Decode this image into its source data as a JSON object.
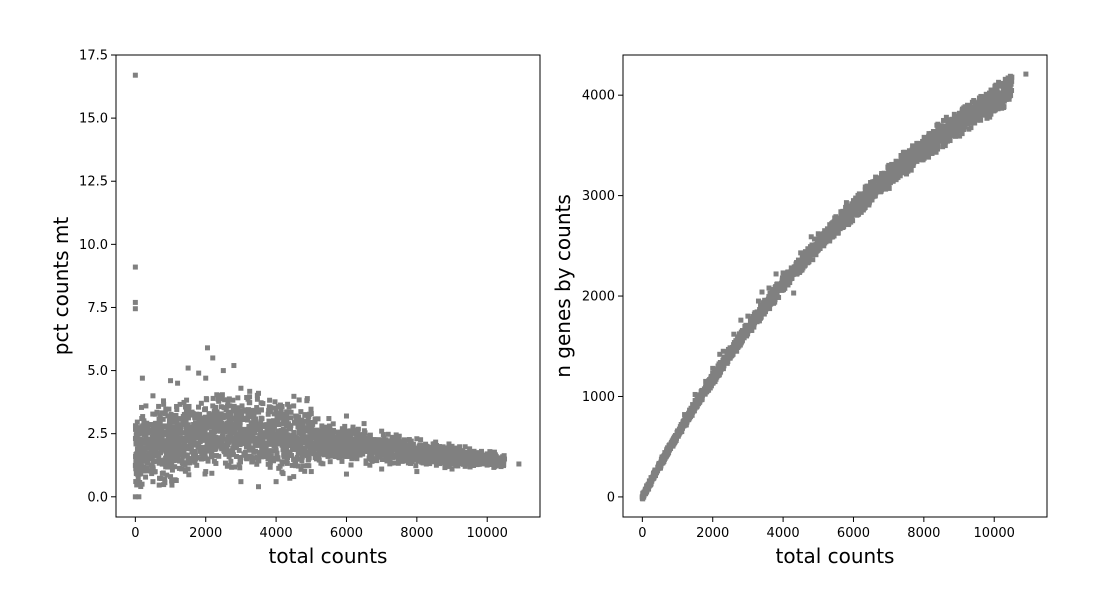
{
  "chart_data": [
    {
      "type": "scatter",
      "xlabel": "total counts",
      "ylabel": "pct counts mt",
      "xlim": [
        -550,
        11500
      ],
      "ylim": [
        -0.8,
        17.5
      ],
      "xticks": [
        0,
        2000,
        4000,
        6000,
        8000,
        10000
      ],
      "xtick_labels": [
        "0",
        "2000",
        "4000",
        "6000",
        "8000",
        "10000"
      ],
      "yticks": [
        0.0,
        2.5,
        5.0,
        7.5,
        10.0,
        12.5,
        15.0,
        17.5
      ],
      "ytick_labels": [
        "0.0",
        "2.5",
        "5.0",
        "7.5",
        "10.0",
        "12.5",
        "15.0",
        "17.5"
      ],
      "grid": false,
      "color": "#808080",
      "points": [
        [
          0,
          16.7
        ],
        [
          0,
          9.1
        ],
        [
          0,
          7.7
        ],
        [
          0,
          7.45
        ],
        [
          0,
          0.0
        ],
        [
          100,
          0.0
        ],
        [
          150,
          2.7
        ],
        [
          200,
          4.7
        ],
        [
          300,
          3.6
        ],
        [
          500,
          4.0
        ],
        [
          800,
          3.8
        ],
        [
          1000,
          4.6
        ],
        [
          1200,
          4.5
        ],
        [
          1500,
          5.1
        ],
        [
          1800,
          4.9
        ],
        [
          2000,
          4.7
        ],
        [
          2050,
          5.9
        ],
        [
          2200,
          5.5
        ],
        [
          2500,
          5.0
        ],
        [
          2800,
          5.2
        ],
        [
          3000,
          4.3
        ],
        [
          3500,
          4.1
        ],
        [
          4000,
          3.4
        ],
        [
          4500,
          3.6
        ],
        [
          5000,
          3.3
        ],
        [
          5500,
          3.1
        ],
        [
          6000,
          3.2
        ],
        [
          6500,
          2.9
        ],
        [
          7000,
          2.6
        ],
        [
          7500,
          2.4
        ],
        [
          8000,
          2.3
        ],
        [
          8500,
          2.1
        ],
        [
          9000,
          2.0
        ],
        [
          9500,
          1.9
        ],
        [
          10000,
          1.7
        ],
        [
          10400,
          1.3
        ],
        [
          10900,
          1.3
        ],
        [
          500,
          0.6
        ],
        [
          1000,
          0.8
        ],
        [
          1500,
          1.1
        ],
        [
          2000,
          1.0
        ],
        [
          3000,
          0.6
        ],
        [
          3500,
          0.4
        ],
        [
          4000,
          0.6
        ],
        [
          4500,
          0.8
        ],
        [
          5000,
          1.0
        ],
        [
          6000,
          0.9
        ],
        [
          7000,
          1.1
        ],
        [
          8000,
          1.0
        ],
        [
          9000,
          1.1
        ],
        [
          10000,
          1.3
        ],
        [
          2500,
          2.7
        ],
        [
          3000,
          2.5
        ],
        [
          3500,
          2.2
        ],
        [
          1500,
          2.4
        ],
        [
          4000,
          2.3
        ],
        [
          5000,
          2.0
        ],
        [
          6000,
          1.8
        ],
        [
          7000,
          1.7
        ],
        [
          8000,
          1.6
        ],
        [
          9000,
          1.5
        ],
        [
          1000,
          2.1
        ],
        [
          1200,
          1.6
        ],
        [
          2200,
          3.6
        ],
        [
          2800,
          3.1
        ],
        [
          3200,
          3.4
        ],
        [
          4200,
          2.9
        ],
        [
          4800,
          2.6
        ],
        [
          5500,
          2.4
        ],
        [
          6500,
          2.1
        ],
        [
          7500,
          2.0
        ],
        [
          8500,
          1.8
        ]
      ]
    },
    {
      "type": "scatter",
      "xlabel": "total counts",
      "ylabel": "n genes by counts",
      "xlim": [
        -550,
        11500
      ],
      "ylim": [
        -200,
        4400
      ],
      "xticks": [
        0,
        2000,
        4000,
        6000,
        8000,
        10000
      ],
      "xtick_labels": [
        "0",
        "2000",
        "4000",
        "6000",
        "8000",
        "10000"
      ],
      "yticks": [
        0,
        1000,
        2000,
        3000,
        4000
      ],
      "ytick_labels": [
        "0",
        "1000",
        "2000",
        "3000",
        "4000"
      ],
      "grid": false,
      "color": "#808080",
      "points": [
        [
          0,
          0
        ],
        [
          100,
          60
        ],
        [
          300,
          200
        ],
        [
          500,
          330
        ],
        [
          700,
          460
        ],
        [
          1000,
          650
        ],
        [
          1300,
          820
        ],
        [
          1500,
          960
        ],
        [
          1800,
          1150
        ],
        [
          2000,
          1280
        ],
        [
          2300,
          1450
        ],
        [
          2600,
          1620
        ],
        [
          3000,
          1800
        ],
        [
          3300,
          1950
        ],
        [
          3600,
          2080
        ],
        [
          4000,
          2230
        ],
        [
          4500,
          2430
        ],
        [
          5000,
          2620
        ],
        [
          5500,
          2790
        ],
        [
          6000,
          2950
        ],
        [
          6500,
          3100
        ],
        [
          7000,
          3250
        ],
        [
          7500,
          3400
        ],
        [
          8000,
          3540
        ],
        [
          8500,
          3670
        ],
        [
          9000,
          3790
        ],
        [
          9500,
          3900
        ],
        [
          10000,
          4020
        ],
        [
          10500,
          4180
        ],
        [
          10900,
          4210
        ],
        [
          2000,
          1180
        ],
        [
          2500,
          1400
        ],
        [
          3000,
          1650
        ],
        [
          3500,
          1880
        ],
        [
          4000,
          2080
        ],
        [
          4300,
          2030
        ],
        [
          5000,
          2520
        ],
        [
          6000,
          2860
        ],
        [
          7000,
          3170
        ],
        [
          8000,
          3450
        ],
        [
          9000,
          3650
        ],
        [
          10000,
          3850
        ],
        [
          1500,
          1020
        ],
        [
          2200,
          1420
        ],
        [
          2800,
          1760
        ],
        [
          3400,
          2040
        ],
        [
          3800,
          2220
        ],
        [
          4800,
          2590
        ],
        [
          5800,
          2930
        ],
        [
          6800,
          3220
        ],
        [
          7800,
          3520
        ],
        [
          8800,
          3760
        ],
        [
          9800,
          3960
        ],
        [
          1200,
          820
        ]
      ]
    }
  ]
}
